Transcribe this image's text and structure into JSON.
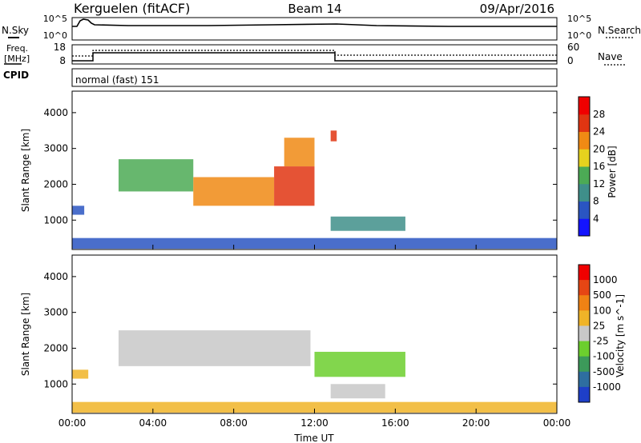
{
  "header": {
    "station": "Kerguelen (fitACF)",
    "beam": "Beam 14",
    "date": "09/Apr/2016"
  },
  "noise_panel": {
    "left_label": "N.Sky",
    "right_label": "N.Search",
    "left_ticks": [
      "10^5",
      "10^0"
    ],
    "right_ticks": [
      "10^5",
      "10^0"
    ]
  },
  "freq_panel": {
    "left_label_line1": "Freq.",
    "left_label_line2": "[MHz]",
    "right_label": "Nave",
    "left_ticks": [
      "18",
      "8"
    ],
    "right_ticks": [
      "60",
      "0"
    ]
  },
  "cpid_panel": {
    "label": "CPID",
    "text": "normal (fast) 151"
  },
  "chart_data": [
    {
      "type": "heatmap",
      "name": "power",
      "ylabel": "Slant Range [km]",
      "ylim": [
        180,
        4600
      ],
      "yticks": [
        1000,
        2000,
        3000,
        4000
      ],
      "colorbar_label": "Power [dB]",
      "colorbar_ticks": [
        "4",
        "8",
        "12",
        "16",
        "20",
        "24",
        "28"
      ],
      "colors": [
        "#1414ff",
        "#2a55c2",
        "#3f8f8a",
        "#4caa55",
        "#e6d21e",
        "#f08a14",
        "#e03512",
        "#f00000"
      ],
      "bands": [
        {
          "t_start": 0.0,
          "t_end": 0.6,
          "r_low": 1150,
          "r_high": 1400,
          "level": 1
        },
        {
          "t_start": 2.3,
          "t_end": 6.0,
          "r_low": 1800,
          "r_high": 2700,
          "level": 3
        },
        {
          "t_start": 6.0,
          "t_end": 10.0,
          "r_low": 1400,
          "r_high": 2200,
          "level": 5
        },
        {
          "t_start": 10.0,
          "t_end": 12.0,
          "r_low": 1400,
          "r_high": 2500,
          "level": 6
        },
        {
          "t_start": 10.5,
          "t_end": 12.0,
          "r_low": 2500,
          "r_high": 3300,
          "level": 5
        },
        {
          "t_start": 12.8,
          "t_end": 13.1,
          "r_low": 3200,
          "r_high": 3500,
          "level": 6
        },
        {
          "t_start": 12.8,
          "t_end": 16.5,
          "r_low": 700,
          "r_high": 1100,
          "level": 2
        },
        {
          "t_start": 0.0,
          "t_end": 24.0,
          "r_low": 200,
          "r_high": 500,
          "level": 1
        }
      ]
    },
    {
      "type": "heatmap",
      "name": "velocity",
      "ylabel": "Slant Range [km]",
      "xlabel": "Time UT",
      "ylim": [
        180,
        4600
      ],
      "yticks": [
        1000,
        2000,
        3000,
        4000
      ],
      "xticks": [
        "00:00",
        "04:00",
        "08:00",
        "12:00",
        "16:00",
        "20:00",
        "00:00"
      ],
      "colorbar_label": "Velocity [m s^-1]",
      "colorbar_ticks": [
        "1000",
        "500",
        "100",
        "25",
        "-25",
        "-100",
        "-500",
        "-1000"
      ],
      "colors": [
        "#1e3fc8",
        "#2e6ea0",
        "#3c9a5a",
        "#6ccf2e",
        "#c8c8c8",
        "#f0b428",
        "#f08214",
        "#e64614",
        "#f00000"
      ],
      "bands": [
        {
          "t_start": 0.0,
          "t_end": 0.8,
          "r_low": 1150,
          "r_high": 1400,
          "level": 5
        },
        {
          "t_start": 2.3,
          "t_end": 11.8,
          "r_low": 1500,
          "r_high": 2500,
          "level": 4
        },
        {
          "t_start": 12.0,
          "t_end": 16.5,
          "r_low": 1200,
          "r_high": 1900,
          "level": 3
        },
        {
          "t_start": 12.8,
          "t_end": 15.5,
          "r_low": 600,
          "r_high": 1000,
          "level": 4
        },
        {
          "t_start": 0.0,
          "t_end": 24.0,
          "r_low": 200,
          "r_high": 500,
          "level": 5
        }
      ]
    }
  ]
}
